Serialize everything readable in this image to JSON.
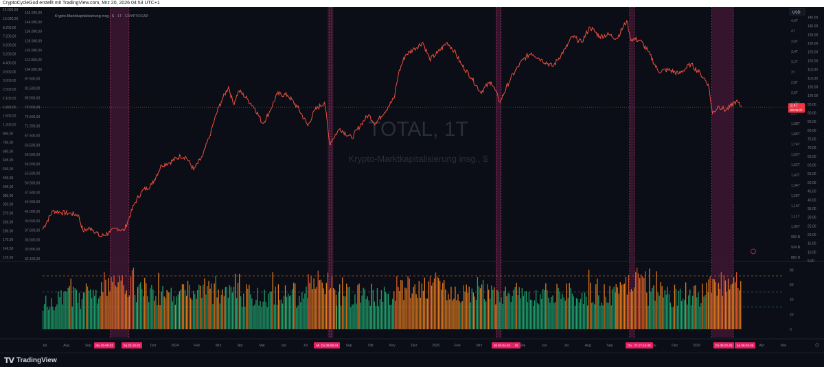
{
  "header": {
    "attribution": "CryptoCycleGod erstellt mit TradingView.com, Mrz 20, 2026 04:53 UTC+1"
  },
  "legend": {
    "title": "Krypto-Marktkapitalisierung insg., $ · 1T · CRYPTOCAP"
  },
  "watermark": {
    "symbol": "TOTAL, 1T",
    "description": "Krypto-Marktkapitalisierung insg., $"
  },
  "footer": {
    "logo_glyph": "TV",
    "brand": "TradingView"
  },
  "colors": {
    "background": "#0b0e16",
    "line": "#ef5040",
    "highlight": "#3a1630",
    "highlight_border": "#a6315f",
    "date_badge": "#e91e63",
    "price_badge": "#f23645",
    "bar_green": "#1f9e6b",
    "bar_orange": "#e07a1f",
    "bar_red": "#d9542c"
  },
  "chart_data": [
    {
      "type": "line",
      "title": "TOTAL, 1T",
      "subtitle": "Krypto-Marktkapitalisierung insg., $",
      "y_scale": "log",
      "x_labels": [
        "Jul",
        "Aug",
        "Sep",
        "Okt",
        "Nov",
        "Dez",
        "2024",
        "Feb",
        "Mrz",
        "Apr",
        "Mai",
        "Jun",
        "Jul",
        "Aug",
        "Sep",
        "Okt",
        "Nov",
        "Dez",
        "2025",
        "Feb",
        "Mrz",
        "Apr",
        "Mai",
        "Jun",
        "Jul",
        "Aug",
        "Sep",
        "Okt",
        "Nov",
        "Dez",
        "2026",
        "Feb",
        "Mrz",
        "Apr",
        "Mai"
      ],
      "x_badges": [
        "Mo 25-09-23",
        "Sa 22-10-23",
        "Mi",
        "Do 08-08-24",
        "Mi 02-04-25",
        "25",
        "Do",
        "Fr 17-10-25",
        "Do 05-02-26",
        "Sa 08-03-26"
      ],
      "right_axis_label": "USD",
      "right_axis_ticks": [
        "4,4T",
        "4T",
        "3,6T",
        "3,4T",
        "3,2T",
        "3T",
        "2,8T",
        "2,6T",
        "2,25T",
        "2,1T",
        "1,98T",
        "1,86T",
        "1,74T",
        "1,62T",
        "1,52T",
        "1,42T",
        "1,34T",
        "1,26T",
        "1,18T",
        "1,11T",
        "1,05T",
        "990 B",
        "934 B",
        "880 B"
      ],
      "right_inner_ticks": [
        "145,00",
        "140,00",
        "135,00",
        "130,00",
        "125,00",
        "120,00",
        "115,00",
        "110,00",
        "105,00",
        "100,00",
        "95,00",
        "90,00",
        "85,00",
        "80,00",
        "75,00",
        "70,00",
        "65,00",
        "60,00",
        "55,00",
        "50,00",
        "45,00",
        "40,00",
        "35,00",
        "30,00",
        "25,00",
        "20,00",
        "15,00",
        "10,00",
        "5,00"
      ],
      "left_axis_ticks": [
        "12.000,00",
        "10.000,00",
        "8.200,00",
        "7.200,00",
        "6.200,00",
        "5.200,00",
        "4.400,00",
        "3.600,00",
        "3.000,00",
        "2.500,00",
        "2.100,00",
        "1.800,00",
        "1.500,00",
        "1.200,00",
        "890,00",
        "780,00",
        "680,00",
        "605,00",
        "530,00",
        "460,00",
        "400,00",
        "380,00",
        "320,00",
        "270,00",
        "230,00",
        "200,00",
        "170,50",
        "146,50",
        "125,50"
      ],
      "left_inner_ticks": [
        "152.000,00",
        "144.000,00",
        "136.000,00",
        "128.000,00",
        "120.000,00",
        "112.000,00",
        "104.000,00",
        "97.500,00",
        "91.500,00",
        "85.500,00",
        "79.500,00",
        "75.500,00",
        "71.500,00",
        "67.500,00",
        "63.500,00",
        "59.500,00",
        "56.500,00",
        "53.500,00",
        "50.500,00",
        "47.500,00",
        "44.500,00",
        "42.000,00",
        "39.600,00",
        "37.600,00",
        "35.600,00",
        "33.800,00",
        "32.100,00"
      ],
      "current_price_label": "2,4T",
      "current_countdown": "20:06:37",
      "points": [
        [
          "2023-06-20",
          1.06
        ],
        [
          "2023-07-05",
          1.2
        ],
        [
          "2023-07-15",
          1.19
        ],
        [
          "2023-07-28",
          1.18
        ],
        [
          "2023-08-10",
          1.17
        ],
        [
          "2023-08-17",
          1.05
        ],
        [
          "2023-08-29",
          1.07
        ],
        [
          "2023-09-11",
          1.01
        ],
        [
          "2023-09-25",
          1.04
        ],
        [
          "2023-10-05",
          1.07
        ],
        [
          "2023-10-15",
          1.05
        ],
        [
          "2023-10-22",
          1.14
        ],
        [
          "2023-10-30",
          1.26
        ],
        [
          "2023-11-10",
          1.37
        ],
        [
          "2023-11-24",
          1.43
        ],
        [
          "2023-12-08",
          1.63
        ],
        [
          "2023-12-20",
          1.66
        ],
        [
          "2024-01-04",
          1.73
        ],
        [
          "2024-01-12",
          1.72
        ],
        [
          "2024-01-23",
          1.58
        ],
        [
          "2024-02-05",
          1.73
        ],
        [
          "2024-02-15",
          1.98
        ],
        [
          "2024-02-28",
          2.4
        ],
        [
          "2024-03-05",
          2.55
        ],
        [
          "2024-03-13",
          2.75
        ],
        [
          "2024-03-20",
          2.45
        ],
        [
          "2024-03-28",
          2.68
        ],
        [
          "2024-04-10",
          2.52
        ],
        [
          "2024-04-20",
          2.38
        ],
        [
          "2024-05-01",
          2.15
        ],
        [
          "2024-05-10",
          2.3
        ],
        [
          "2024-05-22",
          2.62
        ],
        [
          "2024-06-06",
          2.6
        ],
        [
          "2024-06-20",
          2.4
        ],
        [
          "2024-07-05",
          2.12
        ],
        [
          "2024-07-15",
          2.35
        ],
        [
          "2024-07-29",
          2.48
        ],
        [
          "2024-08-05",
          1.88
        ],
        [
          "2024-08-20",
          2.08
        ],
        [
          "2024-09-06",
          1.95
        ],
        [
          "2024-09-20",
          2.15
        ],
        [
          "2024-09-30",
          2.28
        ],
        [
          "2024-10-10",
          2.15
        ],
        [
          "2024-10-28",
          2.4
        ],
        [
          "2024-11-06",
          2.55
        ],
        [
          "2024-11-12",
          3.0
        ],
        [
          "2024-11-22",
          3.4
        ],
        [
          "2024-12-05",
          3.55
        ],
        [
          "2024-12-17",
          3.7
        ],
        [
          "2024-12-27",
          3.3
        ],
        [
          "2025-01-07",
          3.45
        ],
        [
          "2025-01-21",
          3.7
        ],
        [
          "2025-01-31",
          3.5
        ],
        [
          "2025-02-10",
          3.2
        ],
        [
          "2025-02-25",
          2.92
        ],
        [
          "2025-03-10",
          2.65
        ],
        [
          "2025-03-25",
          2.85
        ],
        [
          "2025-04-07",
          2.48
        ],
        [
          "2025-04-22",
          2.9
        ],
        [
          "2025-05-10",
          3.3
        ],
        [
          "2025-05-22",
          3.45
        ],
        [
          "2025-06-05",
          3.3
        ],
        [
          "2025-06-22",
          3.15
        ],
        [
          "2025-07-10",
          3.55
        ],
        [
          "2025-07-20",
          3.85
        ],
        [
          "2025-08-02",
          3.7
        ],
        [
          "2025-08-14",
          4.1
        ],
        [
          "2025-08-28",
          3.85
        ],
        [
          "2025-09-10",
          3.9
        ],
        [
          "2025-09-22",
          3.8
        ],
        [
          "2025-10-06",
          4.28
        ],
        [
          "2025-10-11",
          3.8
        ],
        [
          "2025-10-25",
          3.75
        ],
        [
          "2025-11-05",
          3.5
        ],
        [
          "2025-11-20",
          3.05
        ],
        [
          "2025-12-05",
          3.08
        ],
        [
          "2025-12-20",
          3.0
        ],
        [
          "2026-01-06",
          3.2
        ],
        [
          "2026-01-20",
          3.0
        ],
        [
          "2026-01-31",
          2.8
        ],
        [
          "2026-02-06",
          2.3
        ],
        [
          "2026-02-15",
          2.42
        ],
        [
          "2026-02-25",
          2.35
        ],
        [
          "2026-03-05",
          2.42
        ],
        [
          "2026-03-12",
          2.5
        ],
        [
          "2026-03-20",
          2.4
        ]
      ],
      "highlight_ranges": [
        [
          "2023-09-25",
          "2023-10-22"
        ],
        [
          "2024-08-05",
          "2024-08-08"
        ],
        [
          "2025-04-02",
          "2025-04-08"
        ],
        [
          "2025-10-10",
          "2025-10-17"
        ],
        [
          "2026-02-05",
          "2026-03-08"
        ]
      ],
      "vertical_markers": [
        "2023-09-25",
        "2023-10-22",
        "2024-08-05",
        "2024-08-08",
        "2025-04-02",
        "2025-04-08",
        "2025-10-10",
        "2025-10-17",
        "2026-02-05",
        "2026-03-08"
      ]
    },
    {
      "type": "bar",
      "panel": "oscillator",
      "y_range": [
        0,
        85
      ],
      "y_ticks": [
        "80",
        "60",
        "40",
        "20",
        "0"
      ],
      "reference_levels": [
        {
          "value": 72,
          "color": "#e07a1f"
        },
        {
          "value": 50,
          "color": "#787b86"
        },
        {
          "value": 30,
          "color": "#1f9e6b"
        }
      ],
      "note": "daily bars, color by band",
      "daily_oscillator_approx": [
        {
          "from": "2023-06-20",
          "to": "2023-09-10",
          "mean": 42,
          "color": "green"
        },
        {
          "from": "2023-09-10",
          "to": "2023-10-30",
          "mean": 60,
          "color": "orange"
        },
        {
          "from": "2023-10-30",
          "to": "2024-03-20",
          "mean": 48,
          "color": "mixed"
        },
        {
          "from": "2024-03-20",
          "to": "2024-07-05",
          "mean": 46,
          "color": "green"
        },
        {
          "from": "2024-07-05",
          "to": "2024-08-15",
          "mean": 62,
          "color": "orange"
        },
        {
          "from": "2024-08-15",
          "to": "2024-11-05",
          "mean": 45,
          "color": "green"
        },
        {
          "from": "2024-11-05",
          "to": "2025-02-05",
          "mean": 55,
          "color": "orange"
        },
        {
          "from": "2025-02-05",
          "to": "2025-04-20",
          "mean": 50,
          "color": "mixed"
        },
        {
          "from": "2025-04-20",
          "to": "2025-09-20",
          "mean": 48,
          "color": "green"
        },
        {
          "from": "2025-09-20",
          "to": "2025-11-05",
          "mean": 60,
          "color": "orange"
        },
        {
          "from": "2025-11-05",
          "to": "2026-01-31",
          "mean": 47,
          "color": "green"
        },
        {
          "from": "2026-01-31",
          "to": "2026-03-20",
          "mean": 60,
          "color": "orange"
        }
      ]
    }
  ]
}
